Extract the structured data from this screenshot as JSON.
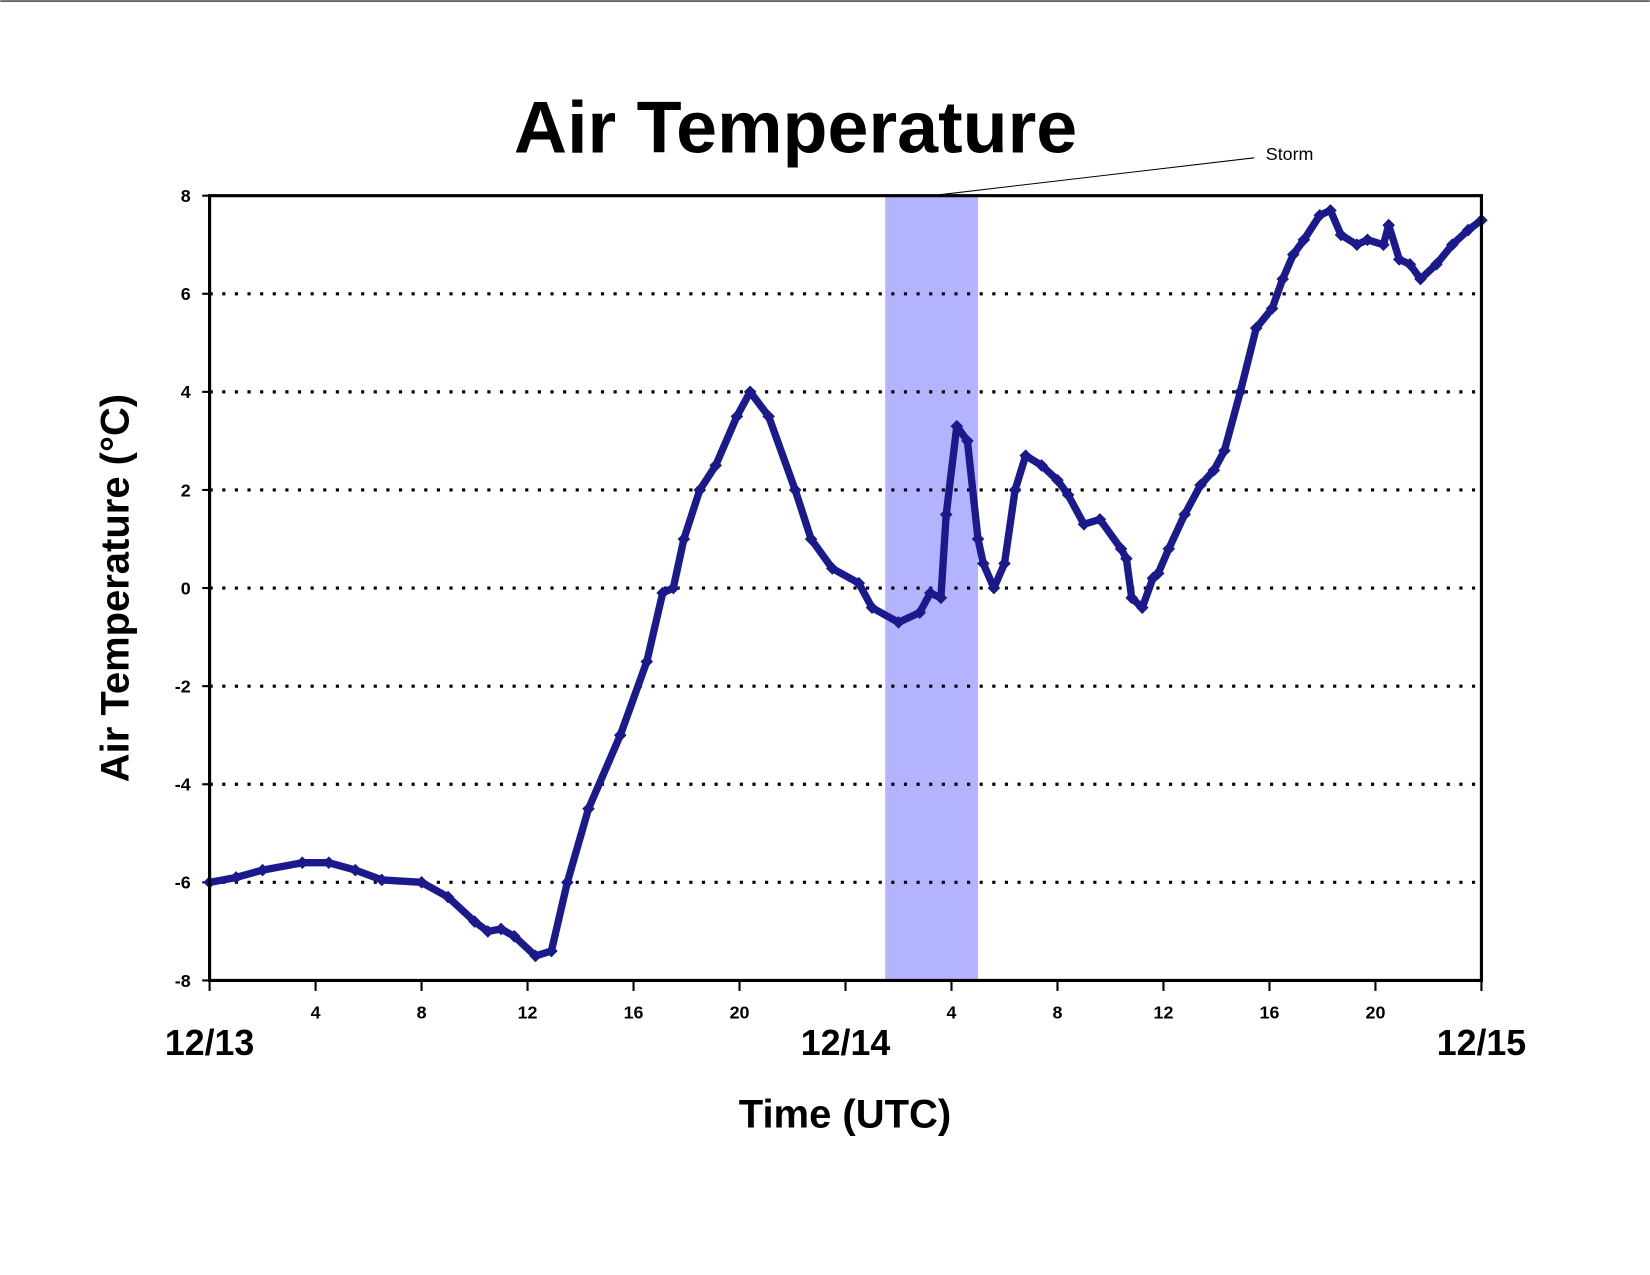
{
  "chart_data": {
    "type": "scatter",
    "title": "Air Temperature",
    "x_label": "Time (UTC)",
    "y_label": "Air Temperature (°C)",
    "xlim": [
      0,
      48
    ],
    "ylim": [
      -8,
      8
    ],
    "xticks": [
      {
        "value": 0,
        "label": "12/13"
      },
      4,
      8,
      12,
      16,
      20,
      {
        "value": 24,
        "label": "12/14"
      },
      {
        "value": 28,
        "label": "4"
      },
      {
        "value": 32,
        "label": "8"
      },
      {
        "value": 36,
        "label": "12"
      },
      {
        "value": 40,
        "label": "16"
      },
      {
        "value": 44,
        "label": "20"
      },
      {
        "value": 48,
        "label": "12/15"
      }
    ],
    "yticks": [
      -8,
      -6,
      -4,
      -2,
      0,
      2,
      4,
      6,
      8
    ],
    "grid": true,
    "storm": {
      "label": "Storm",
      "x": [
        25.5,
        29.0
      ],
      "color": "#b3b3ff"
    },
    "series": [
      {
        "name": "Air Temperature",
        "color": "#1a1a8c",
        "x": [
          0,
          1,
          2,
          3.5,
          4.5,
          5.5,
          6.5,
          8,
          9,
          10,
          10.5,
          11,
          11.5,
          12.3,
          12.9,
          13.5,
          14.3,
          15.5,
          16.5,
          17.1,
          17.5,
          17.9,
          18.5,
          19.1,
          19.9,
          20.4,
          21.1,
          22.1,
          22.7,
          23.5,
          24.5,
          25,
          26,
          26.8,
          27.2,
          27.6,
          27.8,
          28.2,
          28.6,
          29.0,
          29.2,
          29.6,
          30.0,
          30.4,
          30.8,
          31.4,
          32,
          32.4,
          33,
          33.6,
          34.4,
          34.6,
          34.8,
          35.2,
          35.6,
          35.8,
          36.2,
          36.8,
          37.4,
          37.9,
          38.3,
          38.9,
          39.5,
          40.1,
          40.5,
          40.9,
          41.3,
          41.9,
          42.3,
          42.7,
          43.3,
          43.7,
          44.3,
          44.5,
          44.9,
          45.3,
          45.7,
          46.3,
          46.9,
          47.5,
          48
        ],
        "values": [
          -6,
          -5.9,
          -5.75,
          -5.6,
          -5.6,
          -5.75,
          -5.95,
          -6,
          -6.3,
          -6.8,
          -7,
          -6.95,
          -7.1,
          -7.5,
          -7.4,
          -6,
          -4.5,
          -3,
          -1.5,
          -0.1,
          0,
          1,
          2,
          2.5,
          3.5,
          4,
          3.5,
          2,
          1,
          0.4,
          0.1,
          -0.4,
          -0.7,
          -0.5,
          -0.1,
          -0.2,
          1.5,
          3.3,
          3,
          1,
          0.5,
          0,
          0.5,
          2,
          2.7,
          2.5,
          2.2,
          1.9,
          1.3,
          1.4,
          0.8,
          0.6,
          -0.2,
          -0.4,
          0.2,
          0.3,
          0.8,
          1.5,
          2.1,
          2.4,
          2.8,
          4,
          5.3,
          5.7,
          6.3,
          6.8,
          7.1,
          7.6,
          7.7,
          7.2,
          7,
          7.1,
          7,
          7.4,
          6.7,
          6.6,
          6.3,
          6.6,
          7,
          7.3,
          7.5
        ]
      }
    ]
  }
}
